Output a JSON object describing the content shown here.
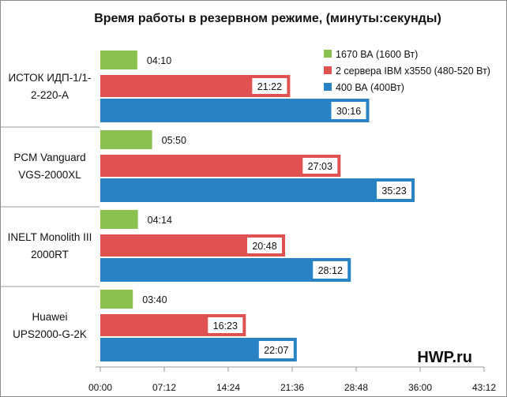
{
  "chart_data": {
    "type": "bar",
    "orientation": "horizontal",
    "title": "Время работы в резервном режиме, (минуты:секунды)",
    "watermark": "HWP.ru",
    "categories": [
      "ИСТОК ИДП-1/1-2-220-А",
      "PCM Vanguard VGS-2000XL",
      "INELT Monolith III 2000RT",
      "Huawei UPS2000-G-2K"
    ],
    "category_lines": [
      [
        "ИСТОК ИДП-1/1-",
        "2-220-А"
      ],
      [
        "PCM Vanguard",
        "VGS-2000XL"
      ],
      [
        "INELT Monolith III",
        "2000RT"
      ],
      [
        "Huawei",
        "UPS2000-G-2K"
      ]
    ],
    "series": [
      {
        "name": "1670 ВА (1600 Вт)",
        "color": "#8bc24f",
        "values": [
          "04:10",
          "05:50",
          "04:14",
          "03:40"
        ]
      },
      {
        "name": "2 сервера IBM x3550 (480-520 Вт)",
        "color": "#e05252",
        "values": [
          "21:22",
          "27:03",
          "20:48",
          "16:23"
        ]
      },
      {
        "name": "400 ВА (400Вт)",
        "color": "#2882c4",
        "values": [
          "30:16",
          "35:23",
          "28:12",
          "22:07"
        ]
      }
    ],
    "xlim": [
      "00:00",
      "43:12"
    ],
    "xticks": [
      "00:00",
      "07:12",
      "14:24",
      "21:36",
      "28:48",
      "36:00",
      "43:12"
    ],
    "legend_position": "top-right",
    "grid": false
  }
}
